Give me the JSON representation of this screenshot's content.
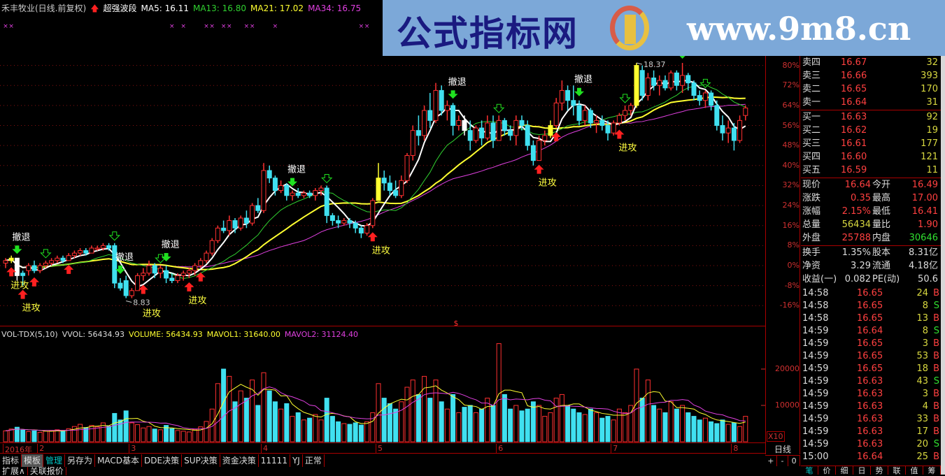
{
  "header": {
    "title": "禾丰牧业(日线.前复权)",
    "indicator": "超强波段",
    "ma5": "MA5: 16.11",
    "ma13": "MA13: 16.80",
    "ma21": "MA21: 17.02",
    "ma34": "MA34: 16.75"
  },
  "colors": {
    "up": "#ff3030",
    "down": "#40e0f0",
    "ma5": "#ffffff",
    "ma13": "#30d030",
    "ma21": "#ffff30",
    "ma34": "#e040e0",
    "axis": "#d03030",
    "grid": "#8a1010",
    "banner": "#7ca8d8"
  },
  "banner": {
    "text": "公式指标网",
    "url": "www.9m8.cn",
    "logo_text": "www.9m8.cn"
  },
  "volume_header": {
    "name": "VOL-TDX(5,10)",
    "vvol": "VVOL: 56434.93",
    "volume": "VOLUME: 56434.93",
    "mavol1": "MAVOL1: 31640.00",
    "mavol2": "MAVOL2: 31124.40"
  },
  "chart_data": {
    "type": "candlestick",
    "y_unit": "%",
    "y_ticks": [
      "80%",
      "72%",
      "64%",
      "56%",
      "48%",
      "40%",
      "32%",
      "24%",
      "16%",
      "8%",
      "0%",
      "-8%",
      "-16%"
    ],
    "y_tick_values": [
      80,
      72,
      64,
      56,
      48,
      40,
      32,
      24,
      16,
      8,
      0,
      -8,
      -16
    ],
    "volume_ticks": [
      "20000",
      "10000"
    ],
    "volume_tick_values": [
      20000,
      10000
    ],
    "volume_multiplier": "X10",
    "x_labels": [
      {
        "i": 0,
        "label": "2016年"
      },
      {
        "i": 6,
        "label": "2"
      },
      {
        "i": 22,
        "label": "3"
      },
      {
        "i": 45,
        "label": "4"
      },
      {
        "i": 65,
        "label": "5"
      },
      {
        "i": 86,
        "label": "6"
      },
      {
        "i": 106,
        "label": "7"
      },
      {
        "i": 127,
        "label": "8"
      }
    ],
    "candles_ohlc_pct": [
      [
        1,
        3,
        -1,
        2
      ],
      [
        2,
        4,
        1,
        3
      ],
      [
        3,
        3,
        -6,
        -4
      ],
      [
        -3,
        -2,
        -8,
        -4
      ],
      [
        -2,
        1,
        -4,
        0
      ],
      [
        0,
        2,
        -3,
        -2
      ],
      [
        -2,
        1,
        -3,
        0
      ],
      [
        0,
        2,
        -1,
        1
      ],
      [
        1,
        3,
        0,
        2
      ],
      [
        2,
        4,
        1,
        3
      ],
      [
        3,
        4,
        1,
        2
      ],
      [
        2,
        5,
        2,
        4
      ],
      [
        4,
        6,
        3,
        5
      ],
      [
        5,
        7,
        4,
        6
      ],
      [
        6,
        7,
        4,
        5
      ],
      [
        5,
        8,
        5,
        7
      ],
      [
        7,
        8,
        6,
        7
      ],
      [
        7,
        9,
        6,
        8
      ],
      [
        8,
        9,
        6,
        7
      ],
      [
        8,
        9,
        -9,
        -7
      ],
      [
        -7,
        -5,
        -10,
        -9
      ],
      [
        -6,
        -4,
        -13,
        -12
      ],
      [
        -12,
        -9,
        -13,
        -10
      ],
      [
        -10,
        -3,
        -10,
        -4
      ],
      [
        -4,
        -1,
        -6,
        -3
      ],
      [
        -3,
        2,
        -4,
        0
      ],
      [
        0,
        1,
        -5,
        -3
      ],
      [
        -3,
        0,
        -5,
        -1
      ],
      [
        -2,
        0,
        -7,
        -5
      ],
      [
        -5,
        -3,
        -7,
        -6
      ],
      [
        -6,
        -3,
        -7,
        -4
      ],
      [
        -4,
        -2,
        -6,
        -3
      ],
      [
        -3,
        -1,
        -5,
        -2
      ],
      [
        -2,
        1,
        -4,
        0
      ],
      [
        0,
        3,
        -1,
        2
      ],
      [
        2,
        6,
        1,
        5
      ],
      [
        5,
        11,
        4,
        10
      ],
      [
        10,
        16,
        9,
        15
      ],
      [
        15,
        18,
        13,
        14
      ],
      [
        14,
        20,
        12,
        18
      ],
      [
        18,
        19,
        13,
        15
      ],
      [
        15,
        20,
        14,
        19
      ],
      [
        19,
        22,
        15,
        17
      ],
      [
        17,
        25,
        16,
        24
      ],
      [
        24,
        27,
        21,
        22
      ],
      [
        22,
        41,
        21,
        38
      ],
      [
        38,
        40,
        33,
        35
      ],
      [
        35,
        36,
        28,
        30
      ],
      [
        30,
        34,
        29,
        32
      ],
      [
        32,
        33,
        26,
        28
      ],
      [
        28,
        30,
        26,
        29
      ],
      [
        29,
        31,
        27,
        28
      ],
      [
        28,
        30,
        27,
        29
      ],
      [
        29,
        30,
        27,
        28
      ],
      [
        28,
        31,
        26,
        30
      ],
      [
        30,
        32,
        28,
        31
      ],
      [
        31,
        32,
        17,
        20
      ],
      [
        20,
        21,
        16,
        18
      ],
      [
        18,
        20,
        15,
        17
      ],
      [
        17,
        19,
        16,
        18
      ],
      [
        18,
        19,
        15,
        17
      ],
      [
        17,
        18,
        13,
        15
      ],
      [
        15,
        16,
        11,
        13
      ],
      [
        13,
        17,
        12,
        16
      ],
      [
        16,
        27,
        15,
        26
      ],
      [
        26,
        41,
        26,
        35
      ],
      [
        35,
        38,
        30,
        33
      ],
      [
        33,
        36,
        28,
        30
      ],
      [
        30,
        34,
        27,
        28
      ],
      [
        28,
        36,
        27,
        34
      ],
      [
        34,
        45,
        33,
        44
      ],
      [
        44,
        56,
        42,
        54
      ],
      [
        54,
        60,
        48,
        52
      ],
      [
        52,
        64,
        50,
        62
      ],
      [
        62,
        69,
        55,
        58
      ],
      [
        58,
        73,
        57,
        70
      ],
      [
        70,
        72,
        60,
        62
      ],
      [
        62,
        66,
        58,
        64
      ],
      [
        64,
        65,
        52,
        56
      ],
      [
        56,
        60,
        54,
        58
      ],
      [
        58,
        60,
        52,
        54
      ],
      [
        54,
        58,
        46,
        50
      ],
      [
        50,
        56,
        49,
        55
      ],
      [
        55,
        58,
        48,
        51
      ],
      [
        51,
        60,
        50,
        57
      ],
      [
        57,
        60,
        47,
        50
      ],
      [
        50,
        60,
        50,
        58
      ],
      [
        58,
        59,
        52,
        54
      ],
      [
        54,
        56,
        50,
        52
      ],
      [
        52,
        60,
        48,
        58
      ],
      [
        58,
        60,
        54,
        56
      ],
      [
        56,
        58,
        46,
        48
      ],
      [
        48,
        50,
        40,
        42
      ],
      [
        42,
        52,
        42,
        50
      ],
      [
        50,
        54,
        48,
        52
      ],
      [
        52,
        58,
        51,
        56
      ],
      [
        56,
        67,
        55,
        65
      ],
      [
        65,
        74,
        62,
        70
      ],
      [
        70,
        72,
        62,
        66
      ],
      [
        66,
        72,
        60,
        64
      ],
      [
        64,
        66,
        56,
        58
      ],
      [
        58,
        64,
        56,
        62
      ],
      [
        62,
        63,
        55,
        57
      ],
      [
        57,
        60,
        53,
        58
      ],
      [
        58,
        60,
        54,
        56
      ],
      [
        56,
        58,
        50,
        53
      ],
      [
        53,
        58,
        52,
        57
      ],
      [
        57,
        61,
        56,
        60
      ],
      [
        60,
        64,
        58,
        62
      ],
      [
        62,
        65,
        60,
        64
      ],
      [
        64,
        81,
        63,
        80
      ],
      [
        78,
        80,
        66,
        68
      ],
      [
        68,
        77,
        66,
        75
      ],
      [
        75,
        78,
        70,
        72
      ],
      [
        72,
        76,
        68,
        74
      ],
      [
        74,
        76,
        70,
        71
      ],
      [
        71,
        78,
        70,
        77
      ],
      [
        77,
        78,
        70,
        72
      ],
      [
        72,
        81,
        69,
        76
      ],
      [
        76,
        77,
        70,
        73
      ],
      [
        73,
        74,
        66,
        68
      ],
      [
        68,
        70,
        64,
        66
      ],
      [
        66,
        70,
        63,
        69
      ],
      [
        69,
        70,
        62,
        64
      ],
      [
        64,
        66,
        54,
        56
      ],
      [
        56,
        60,
        50,
        53
      ],
      [
        53,
        58,
        49,
        55
      ],
      [
        55,
        57,
        46,
        50
      ],
      [
        50,
        60,
        49,
        58
      ],
      [
        60,
        64,
        58,
        63
      ]
    ],
    "volumes": [
      3000,
      3500,
      4000,
      3200,
      2800,
      3000,
      2600,
      2900,
      3100,
      3300,
      3000,
      3600,
      4200,
      4800,
      3900,
      4500,
      4100,
      5200,
      4300,
      7800,
      6000,
      8500,
      5200,
      4700,
      3800,
      4200,
      3500,
      3300,
      4500,
      3600,
      3100,
      2900,
      2700,
      3400,
      4100,
      5600,
      9000,
      16000,
      20000,
      18000,
      11000,
      14000,
      12000,
      17000,
      10000,
      19000,
      14000,
      11000,
      9000,
      10500,
      7000,
      8000,
      6000,
      6500,
      7500,
      6000,
      12000,
      7000,
      5500,
      5000,
      4800,
      5200,
      4600,
      5500,
      8000,
      16000,
      12000,
      10500,
      9000,
      11000,
      15000,
      17000,
      13000,
      18000,
      12000,
      17000,
      11000,
      9000,
      13000,
      8000,
      9500,
      10000,
      8000,
      9000,
      12000,
      10000,
      27000,
      13000,
      9000,
      10000,
      8500,
      9000,
      11000,
      10000,
      7000,
      8000,
      12000,
      13000,
      10000,
      9000,
      8000,
      7500,
      9000,
      8000,
      6500,
      7000,
      6000,
      9000,
      8000,
      10000,
      20000,
      12000,
      17000,
      10000,
      9000,
      8000,
      11000,
      9000,
      10000,
      8000,
      7000,
      6000,
      6500,
      5500,
      5000,
      6000,
      4800,
      5200,
      4200,
      7000
    ],
    "highlight_candles": [
      {
        "i": 1,
        "color": "#ffff30"
      },
      {
        "i": 2,
        "color": "#ffffff"
      },
      {
        "i": 65,
        "color": "#ffff30"
      },
      {
        "i": 80,
        "color": "#ffffff"
      },
      {
        "i": 95,
        "color": "#ffff30"
      },
      {
        "i": 110,
        "color": "#ffff30"
      }
    ],
    "sell_signals": [
      {
        "i": 2,
        "label": "撤退"
      },
      {
        "i": 20,
        "label": "撤退"
      },
      {
        "i": 28,
        "label": "撤退"
      },
      {
        "i": 50,
        "label": "撤退"
      },
      {
        "i": 78,
        "label": "撤退"
      },
      {
        "i": 100,
        "label": "撤退"
      },
      {
        "i": 118,
        "label": ""
      }
    ],
    "weak_sell_signals": [
      7,
      19,
      27,
      56,
      86,
      108,
      122
    ],
    "buy_signals": [
      {
        "i": 1,
        "label": "进攻"
      },
      {
        "i": 3,
        "label": "进攻"
      },
      {
        "i": 5,
        "label": ""
      },
      {
        "i": 11,
        "label": ""
      },
      {
        "i": 24,
        "label": "进攻"
      },
      {
        "i": 32,
        "label": "进攻"
      },
      {
        "i": 34,
        "label": ""
      },
      {
        "i": 64,
        "label": "进攻"
      },
      {
        "i": 93,
        "label": "进攻"
      },
      {
        "i": 96,
        "label": ""
      },
      {
        "i": 107,
        "label": "进攻"
      }
    ],
    "annotations": [
      {
        "i": 21,
        "text": "8.83",
        "at": "low"
      },
      {
        "i": 110,
        "text": "18.37",
        "at": "high"
      }
    ],
    "top_markers": [
      0,
      1,
      29,
      31,
      35,
      36,
      38,
      39,
      42,
      43,
      47,
      62,
      63
    ],
    "marker_symbol": "×",
    "dollar_marker": {
      "i": 79,
      "text": "$"
    }
  },
  "quote": {
    "asks": [
      {
        "label": "卖四",
        "price": "16.67",
        "vol": "32"
      },
      {
        "label": "卖三",
        "price": "16.66",
        "vol": "393"
      },
      {
        "label": "卖二",
        "price": "16.65",
        "vol": "170"
      },
      {
        "label": "卖一",
        "price": "16.64",
        "vol": "31"
      }
    ],
    "bids": [
      {
        "label": "买一",
        "price": "16.63",
        "vol": "92"
      },
      {
        "label": "买二",
        "price": "16.62",
        "vol": "19"
      },
      {
        "label": "买三",
        "price": "16.61",
        "vol": "177"
      },
      {
        "label": "买四",
        "price": "16.60",
        "vol": "121"
      },
      {
        "label": "买五",
        "price": "16.59",
        "vol": "11"
      }
    ],
    "stats": [
      {
        "l1": "现价",
        "v1": "16.64",
        "l2": "今开",
        "v2": "16.49",
        "c1": "red",
        "c2": "red"
      },
      {
        "l1": "涨跌",
        "v1": "0.35",
        "l2": "最高",
        "v2": "17.00",
        "c1": "red",
        "c2": "red"
      },
      {
        "l1": "涨幅",
        "v1": "2.15%",
        "l2": "最低",
        "v2": "16.41",
        "c1": "red",
        "c2": "red"
      },
      {
        "l1": "总量",
        "v1": "56434",
        "l2": "量比",
        "v2": "1.90",
        "c1": "yel",
        "c2": "red"
      },
      {
        "l1": "外盘",
        "v1": "25788",
        "l2": "内盘",
        "v2": "30646",
        "c1": "red",
        "c2": "grn"
      }
    ],
    "fundamentals": [
      {
        "l1": "换手",
        "v1": "1.35%",
        "l2": "股本",
        "v2": "8.31亿"
      },
      {
        "l1": "净资",
        "v1": "3.29",
        "l2": "流通",
        "v2": "4.18亿"
      },
      {
        "l1": "收益(一)",
        "v1": "0.082",
        "l2": "PE(动)",
        "v2": "50.6"
      }
    ],
    "ticks": [
      {
        "t": "14:58",
        "p": "16.65",
        "v": "24",
        "s": "B"
      },
      {
        "t": "14:58",
        "p": "16.65",
        "v": "8",
        "s": "S"
      },
      {
        "t": "14:58",
        "p": "16.65",
        "v": "13",
        "s": "B"
      },
      {
        "t": "14:59",
        "p": "16.64",
        "v": "8",
        "s": "S"
      },
      {
        "t": "14:59",
        "p": "16.65",
        "v": "3",
        "s": "B"
      },
      {
        "t": "14:59",
        "p": "16.65",
        "v": "53",
        "s": "B"
      },
      {
        "t": "14:59",
        "p": "16.65",
        "v": "18",
        "s": "B"
      },
      {
        "t": "14:59",
        "p": "16.63",
        "v": "43",
        "s": "S"
      },
      {
        "t": "14:59",
        "p": "16.63",
        "v": "3",
        "s": "B"
      },
      {
        "t": "14:59",
        "p": "16.63",
        "v": "4",
        "s": "B"
      },
      {
        "t": "14:59",
        "p": "16.63",
        "v": "33",
        "s": "B"
      },
      {
        "t": "14:59",
        "p": "16.63",
        "v": "17",
        "s": "B"
      },
      {
        "t": "14:59",
        "p": "16.63",
        "v": "20",
        "s": "S"
      },
      {
        "t": "15:00",
        "p": "16.64",
        "v": "25",
        "s": "B"
      }
    ],
    "bottom_tabs": [
      "笔",
      "价",
      "细",
      "日",
      "势",
      "联",
      "值",
      "筹"
    ]
  },
  "period": "日线",
  "zoom_buttons": [
    "+",
    "-",
    "0"
  ],
  "toolbar": {
    "tabs": [
      "指标",
      "模板",
      "管理",
      "另存为",
      "MACD基本",
      "DDE决策",
      "SUP决策",
      "资金决策",
      "11111",
      "YJ",
      "正常"
    ],
    "tabs2": [
      "扩展∧",
      "关联报价"
    ]
  }
}
